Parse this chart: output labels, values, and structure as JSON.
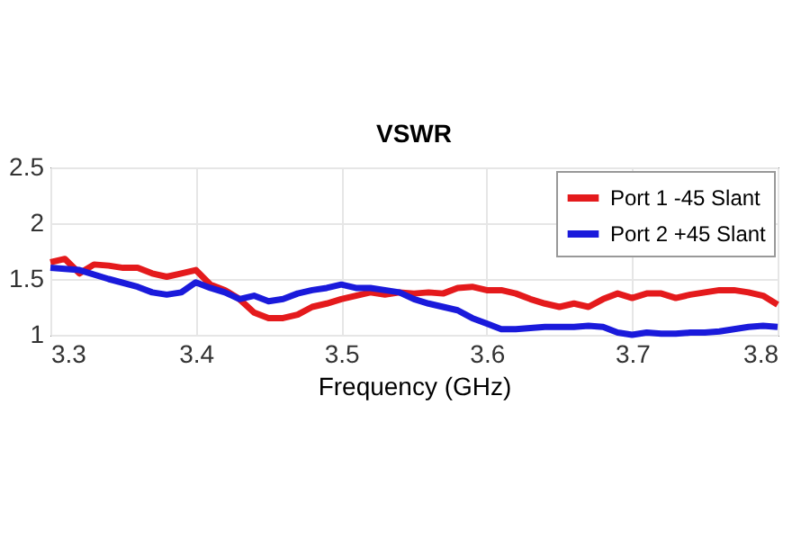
{
  "chart_data": {
    "type": "line",
    "title": "VSWR",
    "xlabel": "Frequency (GHz)",
    "xlim": [
      3.3,
      3.8
    ],
    "xticks": [
      3.3,
      3.4,
      3.5,
      3.6,
      3.7,
      3.8
    ],
    "ylim": [
      1,
      2.5
    ],
    "yticks": [
      1,
      1.5,
      2,
      2.5
    ],
    "grid": true,
    "legend": "top right",
    "line_style": "solid",
    "marker": "none",
    "series": [
      {
        "name": "Port 1 -45 Slant",
        "color": "#e41a1c",
        "x": [
          3.3,
          3.31,
          3.32,
          3.33,
          3.34,
          3.35,
          3.36,
          3.37,
          3.38,
          3.39,
          3.4,
          3.41,
          3.42,
          3.43,
          3.44,
          3.45,
          3.46,
          3.47,
          3.48,
          3.49,
          3.5,
          3.51,
          3.52,
          3.53,
          3.54,
          3.55,
          3.56,
          3.57,
          3.58,
          3.59,
          3.6,
          3.61,
          3.62,
          3.63,
          3.64,
          3.65,
          3.66,
          3.67,
          3.68,
          3.69,
          3.7,
          3.71,
          3.72,
          3.73,
          3.74,
          3.75,
          3.76,
          3.77,
          3.78,
          3.79,
          3.8
        ],
        "values": [
          1.65,
          1.68,
          1.55,
          1.63,
          1.62,
          1.6,
          1.6,
          1.55,
          1.52,
          1.55,
          1.58,
          1.45,
          1.4,
          1.32,
          1.2,
          1.15,
          1.15,
          1.18,
          1.25,
          1.28,
          1.32,
          1.35,
          1.38,
          1.36,
          1.38,
          1.37,
          1.38,
          1.37,
          1.42,
          1.43,
          1.4,
          1.4,
          1.37,
          1.32,
          1.28,
          1.25,
          1.28,
          1.25,
          1.32,
          1.37,
          1.33,
          1.37,
          1.37,
          1.33,
          1.36,
          1.38,
          1.4,
          1.4,
          1.38,
          1.35,
          1.27
        ]
      },
      {
        "name": "Port 2 +45 Slant",
        "color": "#1a1adb",
        "x": [
          3.3,
          3.32,
          3.34,
          3.36,
          3.37,
          3.38,
          3.39,
          3.4,
          3.41,
          3.42,
          3.43,
          3.44,
          3.45,
          3.46,
          3.47,
          3.48,
          3.49,
          3.5,
          3.51,
          3.52,
          3.53,
          3.54,
          3.55,
          3.56,
          3.57,
          3.58,
          3.59,
          3.6,
          3.61,
          3.62,
          3.63,
          3.64,
          3.65,
          3.66,
          3.67,
          3.68,
          3.69,
          3.7,
          3.71,
          3.72,
          3.73,
          3.74,
          3.75,
          3.76,
          3.77,
          3.78,
          3.79,
          3.8
        ],
        "values": [
          1.6,
          1.58,
          1.5,
          1.43,
          1.38,
          1.36,
          1.38,
          1.47,
          1.42,
          1.38,
          1.32,
          1.35,
          1.3,
          1.32,
          1.37,
          1.4,
          1.42,
          1.45,
          1.42,
          1.42,
          1.4,
          1.38,
          1.32,
          1.28,
          1.25,
          1.22,
          1.15,
          1.1,
          1.05,
          1.05,
          1.06,
          1.07,
          1.07,
          1.07,
          1.08,
          1.07,
          1.02,
          1.0,
          1.02,
          1.01,
          1.01,
          1.02,
          1.02,
          1.03,
          1.05,
          1.07,
          1.08,
          1.07
        ]
      }
    ]
  }
}
